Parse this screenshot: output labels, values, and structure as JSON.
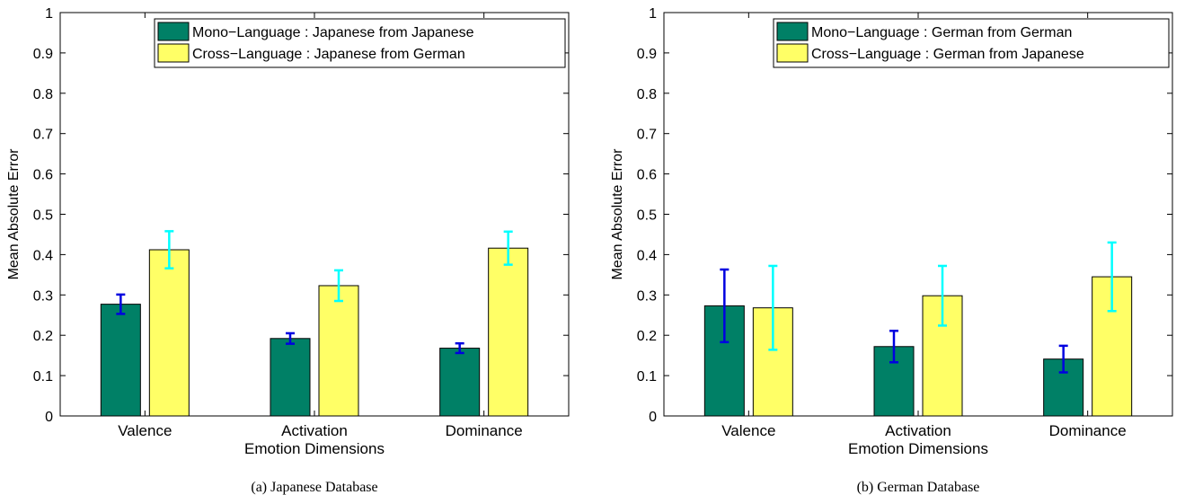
{
  "chart_data": [
    {
      "type": "bar",
      "caption": "(a) Japanese Database",
      "xlabel": "Emotion Dimensions",
      "ylabel": "Mean Absolute Error",
      "ylim": [
        0,
        1
      ],
      "yticks": [
        "0",
        "0.1",
        "0.2",
        "0.3",
        "0.4",
        "0.5",
        "0.6",
        "0.7",
        "0.8",
        "0.9",
        "1"
      ],
      "categories": [
        "Valence",
        "Activation",
        "Dominance"
      ],
      "legend_position": "top-right",
      "grid": false,
      "series": [
        {
          "name": "Mono−Language : Japanese from Japanese",
          "color": "#008066",
          "error_color": "#0000e0",
          "values": [
            0.277,
            0.192,
            0.168
          ],
          "errors": [
            0.024,
            0.013,
            0.012
          ]
        },
        {
          "name": "Cross−Language : Japanese from German",
          "color": "#ffff66",
          "error_color": "#00ffff",
          "values": [
            0.412,
            0.323,
            0.416
          ],
          "errors": [
            0.046,
            0.038,
            0.041
          ]
        }
      ]
    },
    {
      "type": "bar",
      "caption": "(b) German Database",
      "xlabel": "Emotion Dimensions",
      "ylabel": "Mean Absolute Error",
      "ylim": [
        0,
        1
      ],
      "yticks": [
        "0",
        "0.1",
        "0.2",
        "0.3",
        "0.4",
        "0.5",
        "0.6",
        "0.7",
        "0.8",
        "0.9",
        "1"
      ],
      "categories": [
        "Valence",
        "Activation",
        "Dominance"
      ],
      "legend_position": "top-right",
      "grid": false,
      "series": [
        {
          "name": "Mono−Language : German from German",
          "color": "#008066",
          "error_color": "#0000e0",
          "values": [
            0.273,
            0.172,
            0.141
          ],
          "errors": [
            0.09,
            0.039,
            0.033
          ]
        },
        {
          "name": "Cross−Language : German from Japanese",
          "color": "#ffff66",
          "error_color": "#00ffff",
          "values": [
            0.268,
            0.298,
            0.345
          ],
          "errors": [
            0.104,
            0.074,
            0.085
          ]
        }
      ]
    }
  ]
}
